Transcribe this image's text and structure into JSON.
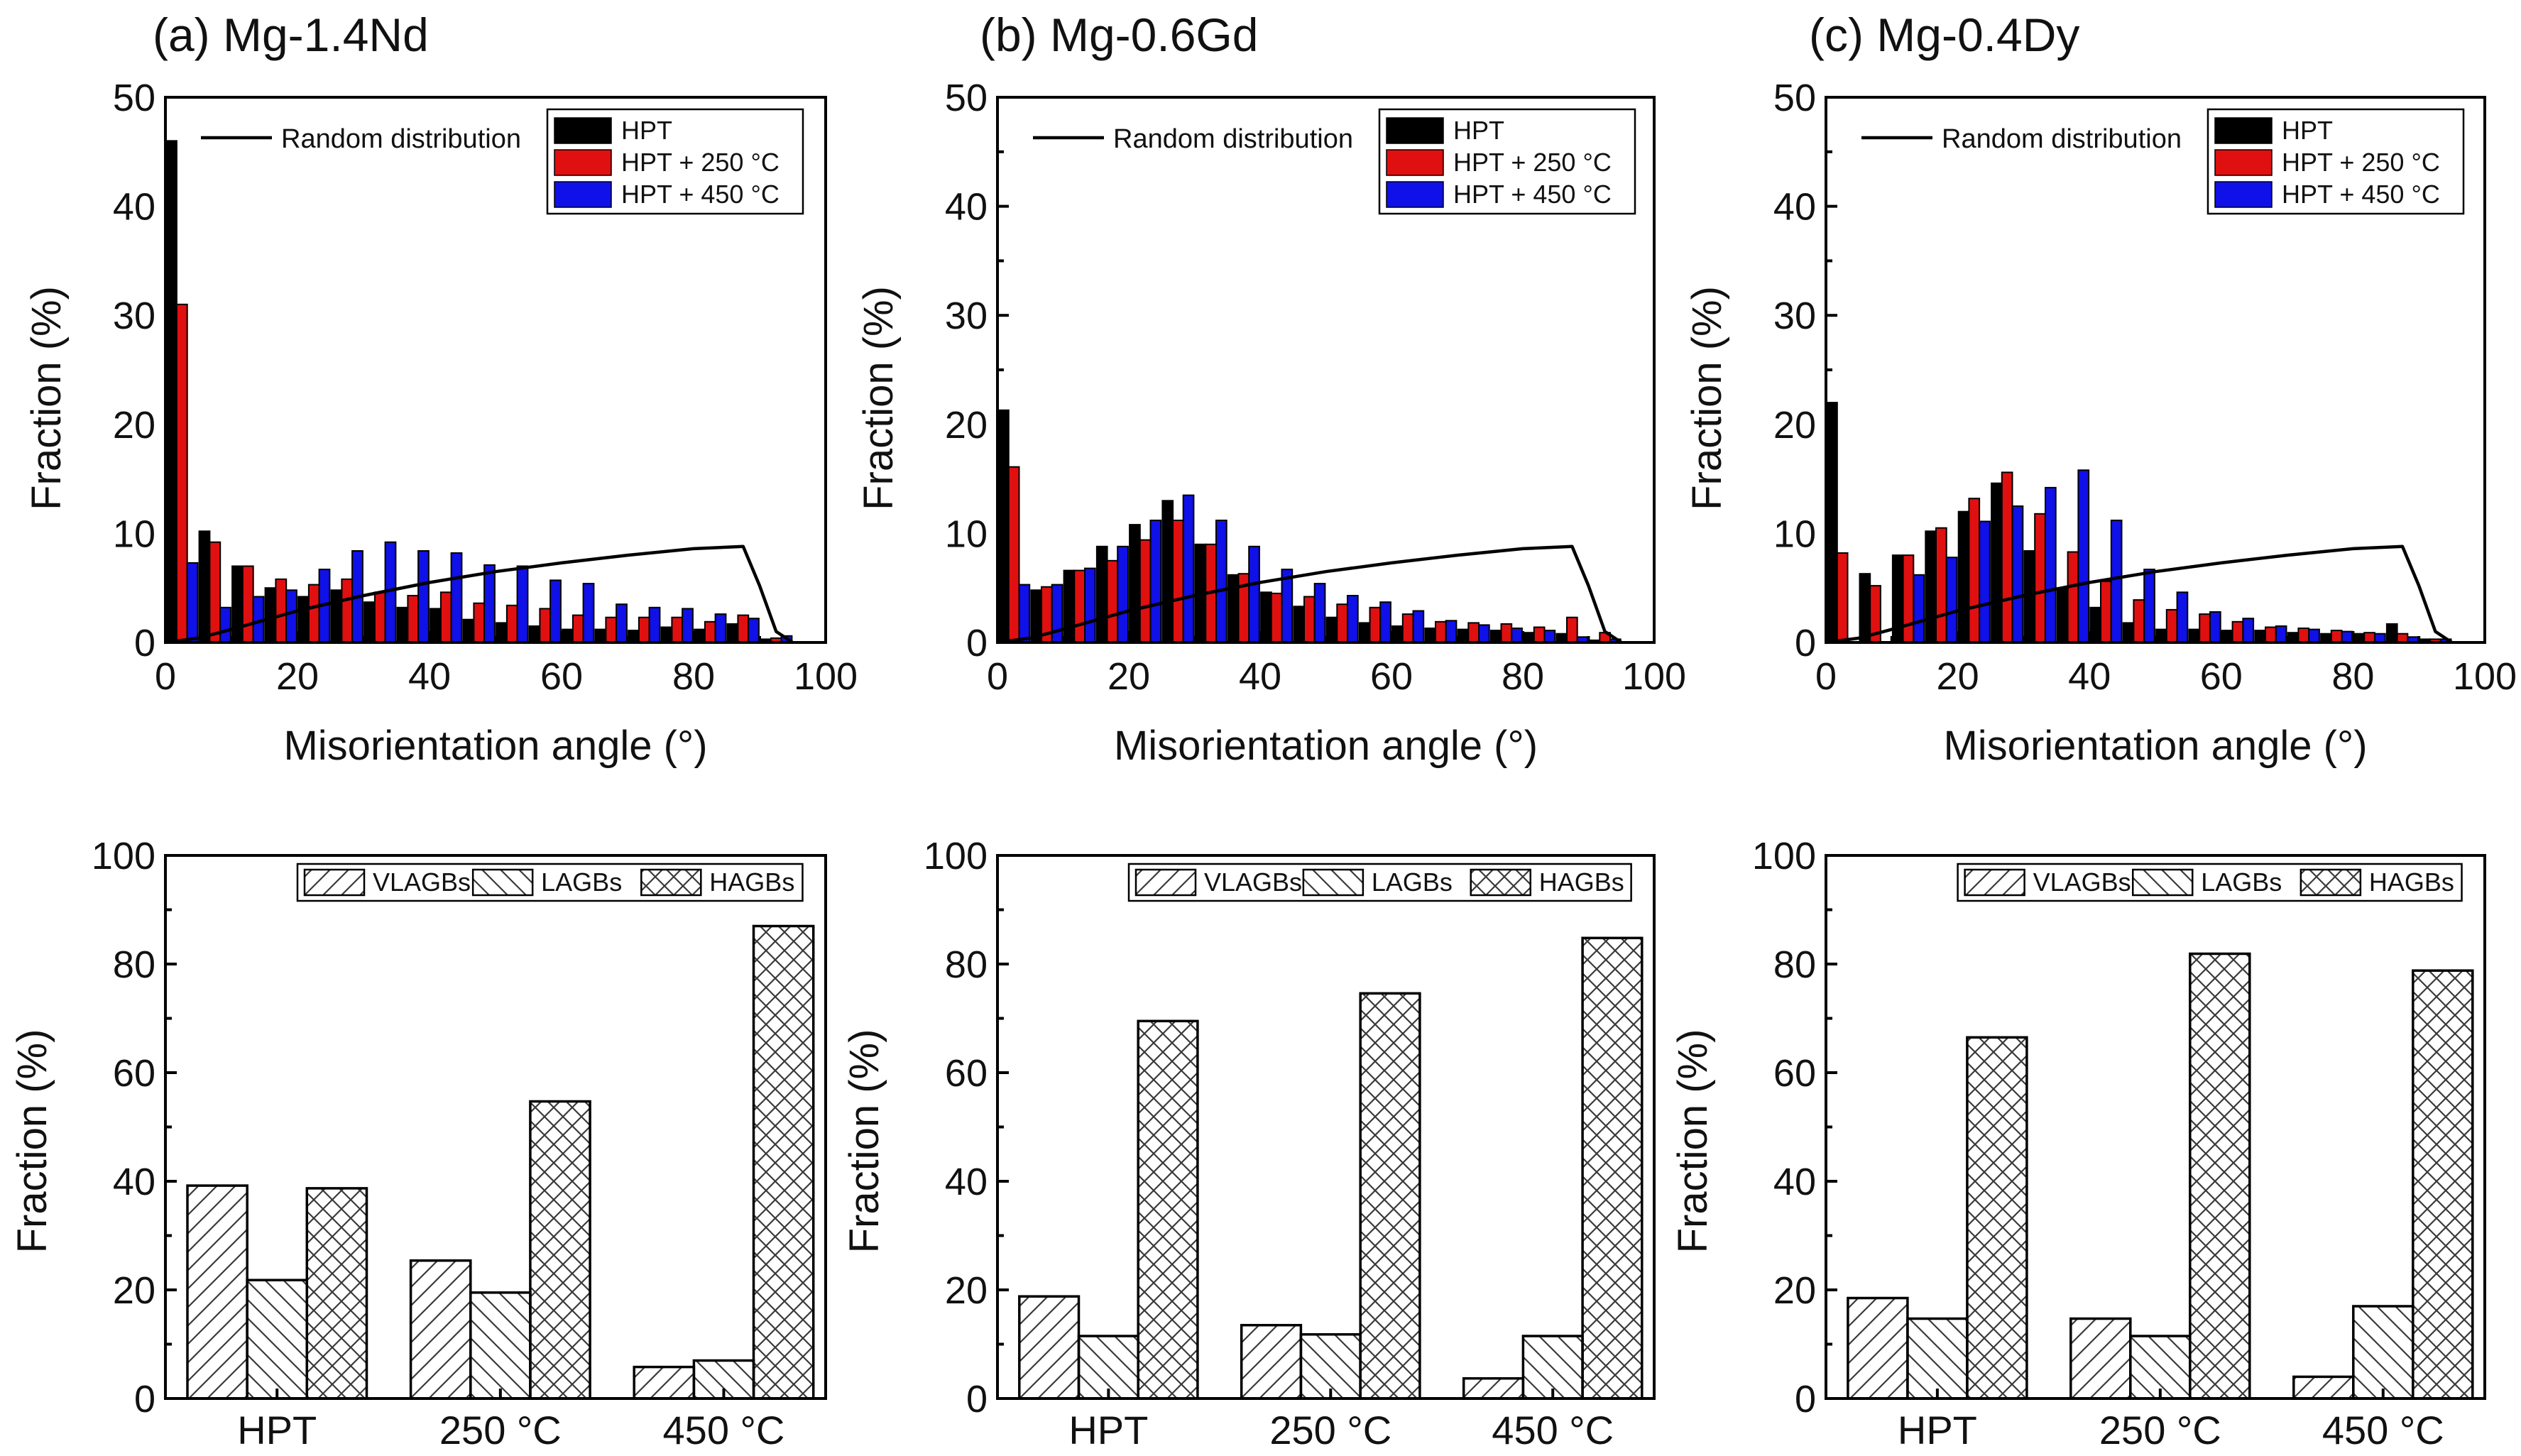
{
  "figure": {
    "series_colors": {
      "HPT": "#000000",
      "HPT + 250 °C": "#e01010",
      "HPT + 450 °C": "#1010e8"
    }
  },
  "chart_data": [
    {
      "id": "a-top",
      "type": "bar",
      "title": "(a) Mg-1.4Nd",
      "xlabel": "Misorientation angle (°)",
      "ylabel": "Fraction (%)",
      "xlim": [
        0,
        100
      ],
      "ylim": [
        0,
        50
      ],
      "xticks": [
        "0",
        "20",
        "40",
        "60",
        "80",
        "100"
      ],
      "yticks": [
        "0",
        "10",
        "20",
        "30",
        "40",
        "50"
      ],
      "line_label": "Random distribution",
      "x": [
        2.5,
        7.5,
        12.5,
        17.5,
        22.5,
        27.5,
        32.5,
        37.5,
        42.5,
        47.5,
        52.5,
        57.5,
        62.5,
        67.5,
        72.5,
        77.5,
        82.5,
        87.5,
        92.5
      ],
      "series": [
        {
          "name": "HPT",
          "values": [
            46,
            10.2,
            7,
            5,
            4.2,
            4.8,
            3.7,
            3.2,
            3.1,
            2.1,
            1.8,
            1.5,
            1.2,
            1.2,
            1.1,
            1.4,
            1.2,
            1.7,
            0.3
          ]
        },
        {
          "name": "HPT + 250 °C",
          "values": [
            31,
            9.2,
            7,
            5.8,
            5.3,
            5.8,
            4.6,
            4.3,
            4.6,
            3.6,
            3.4,
            3.1,
            2.5,
            2.3,
            2.3,
            2.3,
            1.9,
            2.5,
            0.4
          ]
        },
        {
          "name": "HPT + 450 °C",
          "values": [
            7.3,
            3.2,
            4.2,
            4.8,
            6.7,
            8.4,
            9.2,
            8.4,
            8.2,
            7.1,
            7,
            5.7,
            5.4,
            3.5,
            3.2,
            3.1,
            2.6,
            2.2,
            0.6
          ]
        }
      ],
      "random_line": {
        "x": [
          0,
          5,
          10,
          20,
          30,
          40,
          50,
          60,
          70,
          80,
          87.5,
          90,
          92.5,
          95
        ],
        "y": [
          0,
          0.4,
          1.2,
          2.9,
          4.3,
          5.5,
          6.5,
          7.3,
          8,
          8.6,
          8.8,
          5.2,
          1.0,
          0
        ]
      }
    },
    {
      "id": "b-top",
      "type": "bar",
      "title": "(b) Mg-0.6Gd",
      "xlabel": "Misorientation angle (°)",
      "ylabel": "Fraction (%)",
      "xlim": [
        0,
        100
      ],
      "ylim": [
        0,
        50
      ],
      "xticks": [
        "0",
        "20",
        "40",
        "60",
        "80",
        "100"
      ],
      "yticks": [
        "0",
        "10",
        "20",
        "30",
        "40",
        "50"
      ],
      "line_label": "Random distribution",
      "x": [
        2.5,
        7.5,
        12.5,
        17.5,
        22.5,
        27.5,
        32.5,
        37.5,
        42.5,
        47.5,
        52.5,
        57.5,
        62.5,
        67.5,
        72.5,
        77.5,
        82.5,
        87.5,
        92.5
      ],
      "series": [
        {
          "name": "HPT",
          "values": [
            21.3,
            4.8,
            6.6,
            8.8,
            10.8,
            13,
            9,
            6.2,
            4.6,
            3.3,
            2.3,
            1.8,
            1.5,
            1.3,
            1.2,
            1.1,
            0.9,
            0.8,
            0.2
          ]
        },
        {
          "name": "HPT + 250 °C",
          "values": [
            16.1,
            5.1,
            6.6,
            7.5,
            9.4,
            11.2,
            9,
            6.3,
            4.5,
            4.2,
            3.5,
            3.2,
            2.6,
            1.9,
            1.8,
            1.7,
            1.4,
            2.3,
            0.9
          ]
        },
        {
          "name": "HPT + 450 °C",
          "values": [
            5.3,
            5.3,
            6.8,
            8.8,
            11.2,
            13.5,
            11.2,
            8.8,
            6.7,
            5.4,
            4.3,
            3.7,
            2.9,
            2,
            1.6,
            1.3,
            1.1,
            0.5,
            0.3
          ]
        }
      ],
      "random_line": {
        "x": [
          0,
          5,
          10,
          20,
          30,
          40,
          50,
          60,
          70,
          80,
          87.5,
          90,
          92.5,
          95
        ],
        "y": [
          0,
          0.4,
          1.2,
          2.9,
          4.3,
          5.5,
          6.5,
          7.3,
          8,
          8.6,
          8.8,
          5.2,
          1.0,
          0
        ]
      }
    },
    {
      "id": "c-top",
      "type": "bar",
      "title": "(c) Mg-0.4Dy",
      "xlabel": "Misorientation angle (°)",
      "ylabel": "Fraction (%)",
      "xlim": [
        0,
        100
      ],
      "ylim": [
        0,
        50
      ],
      "xticks": [
        "0",
        "20",
        "40",
        "60",
        "80",
        "100"
      ],
      "yticks": [
        "0",
        "10",
        "20",
        "30",
        "40",
        "50"
      ],
      "line_label": "Random distribution",
      "x": [
        2.5,
        7.5,
        12.5,
        17.5,
        22.5,
        27.5,
        32.5,
        37.5,
        42.5,
        47.5,
        52.5,
        57.5,
        62.5,
        67.5,
        72.5,
        77.5,
        82.5,
        87.5,
        92.5
      ],
      "series": [
        {
          "name": "HPT",
          "values": [
            22,
            6.3,
            8,
            10.2,
            12,
            14.6,
            8.4,
            5,
            3.2,
            1.8,
            1.2,
            1.2,
            1.1,
            1.1,
            0.9,
            0.8,
            0.8,
            1.7,
            0.3
          ]
        },
        {
          "name": "HPT + 250 °C",
          "values": [
            8.2,
            5.2,
            8,
            10.5,
            13.2,
            15.6,
            11.8,
            8.3,
            5.6,
            3.9,
            3,
            2.6,
            1.9,
            1.4,
            1.3,
            1.1,
            0.9,
            0.8,
            0.3
          ]
        },
        {
          "name": "HPT + 450 °C",
          "values": [
            0,
            0,
            6.2,
            7.8,
            11.1,
            12.5,
            14.2,
            15.8,
            11.2,
            6.7,
            4.6,
            2.8,
            2.2,
            1.5,
            1.2,
            1,
            0.8,
            0.5,
            0.3
          ]
        }
      ],
      "random_line": {
        "x": [
          0,
          5,
          10,
          20,
          30,
          40,
          50,
          60,
          70,
          80,
          87.5,
          90,
          92.5,
          95
        ],
        "y": [
          0,
          0.4,
          1.2,
          2.9,
          4.3,
          5.5,
          6.5,
          7.3,
          8,
          8.6,
          8.8,
          5.2,
          1.0,
          0
        ]
      }
    },
    {
      "id": "a-bottom",
      "type": "bar",
      "title": "",
      "xlabel": "",
      "ylabel": "Fraction (%)",
      "ylim": [
        0,
        100
      ],
      "yticks": [
        "0",
        "20",
        "40",
        "60",
        "80",
        "100"
      ],
      "categories": [
        "HPT",
        "250 °C",
        "450 °C"
      ],
      "series": [
        {
          "name": "VLAGBs",
          "values": [
            39.2,
            25.4,
            5.8
          ]
        },
        {
          "name": "LAGBs",
          "values": [
            21.8,
            19.5,
            7
          ]
        },
        {
          "name": "HAGBs",
          "values": [
            38.7,
            54.7,
            87
          ]
        }
      ]
    },
    {
      "id": "b-bottom",
      "type": "bar",
      "title": "",
      "xlabel": "",
      "ylabel": "Fraction (%)",
      "ylim": [
        0,
        100
      ],
      "yticks": [
        "0",
        "20",
        "40",
        "60",
        "80",
        "100"
      ],
      "categories": [
        "HPT",
        "250 °C",
        "450 °C"
      ],
      "series": [
        {
          "name": "VLAGBs",
          "values": [
            18.8,
            13.5,
            3.7
          ]
        },
        {
          "name": "LAGBs",
          "values": [
            11.5,
            11.8,
            11.5
          ]
        },
        {
          "name": "HAGBs",
          "values": [
            69.5,
            74.6,
            84.8
          ]
        }
      ]
    },
    {
      "id": "c-bottom",
      "type": "bar",
      "title": "",
      "xlabel": "",
      "ylabel": "Fraction (%)",
      "ylim": [
        0,
        100
      ],
      "yticks": [
        "0",
        "20",
        "40",
        "60",
        "80",
        "100"
      ],
      "categories": [
        "HPT",
        "250 °C",
        "450 °C"
      ],
      "series": [
        {
          "name": "VLAGBs",
          "values": [
            18.5,
            14.7,
            4
          ]
        },
        {
          "name": "LAGBs",
          "values": [
            14.7,
            11.5,
            17
          ]
        },
        {
          "name": "HAGBs",
          "values": [
            66.5,
            81.9,
            78.8
          ]
        }
      ]
    }
  ]
}
